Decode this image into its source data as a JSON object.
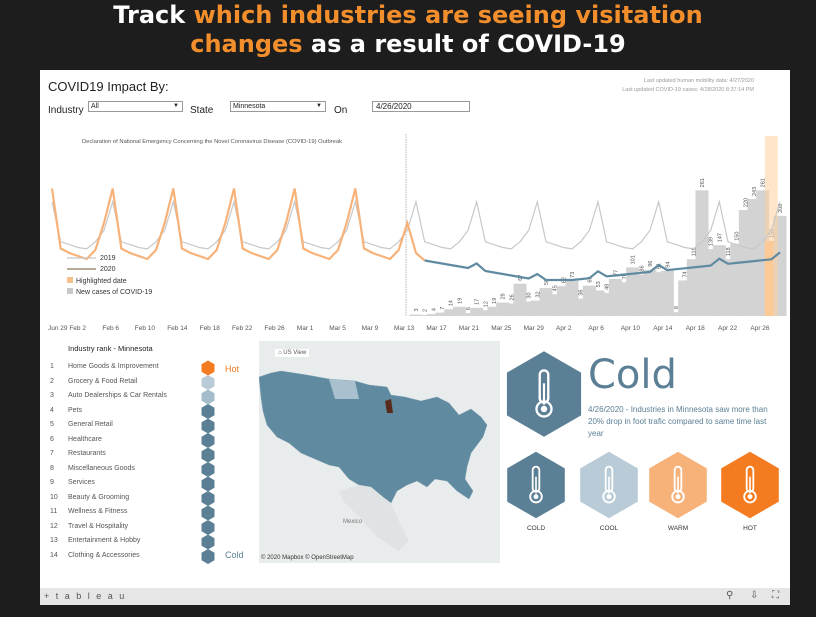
{
  "headline": {
    "l1_white": "Track ",
    "l1_orange": "which industries are seeing visitation",
    "l2_orange": "changes",
    "l2_white": " as a result of COVID-19"
  },
  "title": "COVID19 Impact By:",
  "updates": {
    "mobility": "Last updated human mobility data: 4/27/2020",
    "covid": "Last updated COVID-19 cases: 4/28/2020 8:37:14 PM"
  },
  "filters": {
    "industry_label": "Industry",
    "industry_value": "All",
    "state_label": "State",
    "state_value": "Minnesota",
    "on_label": "On",
    "on_value": "4/26/2020"
  },
  "chart_data": {
    "type": "line",
    "annotation": "Declaration of National Emergency Concerning the Novel Coronavirus Disease (COVID-19) Outbreak",
    "x_ticks": [
      "Jun 29 Feb 2",
      "Feb 6",
      "Feb 10",
      "Feb 14",
      "Feb 18",
      "Feb 22",
      "Feb 26",
      "Mar 1",
      "Mar 5",
      "Mar 9",
      "Mar 13",
      "Mar 17",
      "Mar 21",
      "Mar 25",
      "Mar 29",
      "Apr 2",
      "Apr 6",
      "Apr 10",
      "Apr 14",
      "Apr 18",
      "Apr 22",
      "Apr 26"
    ],
    "legend": [
      "2019",
      "2020",
      "Highlighted date",
      "New cases of COVID-19"
    ],
    "cases": [
      3,
      2,
      4,
      7,
      14,
      19,
      6,
      17,
      12,
      19,
      28,
      26,
      67,
      30,
      32,
      58,
      45,
      62,
      73,
      36,
      63,
      53,
      48,
      77,
      70,
      101,
      86,
      96,
      91,
      94,
      8,
      74,
      118,
      261,
      139,
      147,
      118,
      150,
      220,
      243,
      261,
      156,
      208
    ],
    "series_colors": {
      "2019": "#c8c8c8",
      "2020_before": "#f7b27a",
      "2020_after": "#5f8aa0",
      "highlight": "#ffd1a0",
      "cases": "#d3d3d3"
    }
  },
  "ranking": {
    "header": "Industry rank - Minnesota",
    "items": [
      {
        "n": "1",
        "name": "Home Goods & Improvement"
      },
      {
        "n": "2",
        "name": "Grocery & Food Retail"
      },
      {
        "n": "3",
        "name": "Auto Dealerships & Car Rentals"
      },
      {
        "n": "4",
        "name": "Pets"
      },
      {
        "n": "5",
        "name": "General Retail"
      },
      {
        "n": "6",
        "name": "Healthcare"
      },
      {
        "n": "7",
        "name": "Restaurants"
      },
      {
        "n": "8",
        "name": "Miscellaneous Goods"
      },
      {
        "n": "9",
        "name": "Services"
      },
      {
        "n": "10",
        "name": "Beauty & Grooming"
      },
      {
        "n": "11",
        "name": "Wellness & Fitness"
      },
      {
        "n": "12",
        "name": "Travel & Hospitality"
      },
      {
        "n": "13",
        "name": "Entertainment & Hobby"
      },
      {
        "n": "14",
        "name": "Clothing & Accessories"
      }
    ],
    "hex_colors": [
      "#f47b20",
      "#b8cbd6",
      "#a4bccb",
      "#5b7f95",
      "#5b7f95",
      "#5b7f95",
      "#5b7f95",
      "#5b7f95",
      "#5b7f95",
      "#5b7f95",
      "#5b7f95",
      "#5b7f95",
      "#5b7f95",
      "#5b7f95"
    ],
    "hot_label": "Hot",
    "cold_label": "Cold"
  },
  "map": {
    "button": "US View",
    "credit": "© 2020 Mapbox © OpenStreetMap",
    "city": "Mexico"
  },
  "status": {
    "label": "Cold",
    "description": "4/26/2020 - Industries in Minnesota saw more than 20% drop in foot trafic compared to same time last year",
    "color": "#5b7f95"
  },
  "legend_icons": [
    {
      "label": "COLD",
      "color": "#5b7f95"
    },
    {
      "label": "COOL",
      "color": "#b8cbd6"
    },
    {
      "label": "WARM",
      "color": "#f7b27a"
    },
    {
      "label": "HOT",
      "color": "#f47b20"
    }
  ],
  "toolbar": {
    "brand": "+ t a b l e a u",
    "share_icon": "share-icon",
    "download_icon": "download-icon",
    "fullscreen_icon": "fullscreen-icon"
  }
}
